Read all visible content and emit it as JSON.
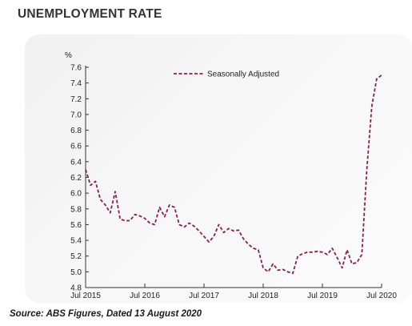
{
  "header": {
    "title": "UNEMPLOYMENT RATE"
  },
  "footer": {
    "source": "Source: ABS Figures, Dated 13 August 2020"
  },
  "chart_data": {
    "type": "line",
    "title": "UNEMPLOYMENT RATE",
    "ylabel": "%",
    "xlabel": "",
    "ylim": [
      4.8,
      7.6
    ],
    "yticks": [
      "4.8",
      "5.0",
      "5.2",
      "5.4",
      "5.6",
      "5.8",
      "6.0",
      "6.2",
      "6.4",
      "6.6",
      "6.8",
      "7.0",
      "7.2",
      "7.4",
      "7.6"
    ],
    "xticks": [
      "Jul 2015",
      "Jul 2016",
      "Jul 2017",
      "Jul 2018",
      "Jul 2019",
      "Jul 2020"
    ],
    "grid": false,
    "legend_position": "top-right",
    "series_color": "#8b1e4e",
    "series": [
      {
        "name": "Seasonally Adjusted",
        "style": "dashed",
        "x": [
          "2015-07",
          "2015-08",
          "2015-09",
          "2015-10",
          "2015-11",
          "2015-12",
          "2016-01",
          "2016-02",
          "2016-03",
          "2016-04",
          "2016-05",
          "2016-06",
          "2016-07",
          "2016-08",
          "2016-09",
          "2016-10",
          "2016-11",
          "2016-12",
          "2017-01",
          "2017-02",
          "2017-03",
          "2017-04",
          "2017-05",
          "2017-06",
          "2017-07",
          "2017-08",
          "2017-09",
          "2017-10",
          "2017-11",
          "2017-12",
          "2018-01",
          "2018-02",
          "2018-03",
          "2018-04",
          "2018-05",
          "2018-06",
          "2018-07",
          "2018-08",
          "2018-09",
          "2018-10",
          "2018-11",
          "2018-12",
          "2019-01",
          "2019-02",
          "2019-03",
          "2019-04",
          "2019-05",
          "2019-06",
          "2019-07",
          "2019-08",
          "2019-09",
          "2019-10",
          "2019-11",
          "2019-12",
          "2020-01",
          "2020-02",
          "2020-03",
          "2020-04",
          "2020-05",
          "2020-06",
          "2020-07"
        ],
        "values": [
          6.3,
          6.1,
          6.15,
          5.92,
          5.85,
          5.75,
          6.02,
          5.67,
          5.65,
          5.65,
          5.73,
          5.71,
          5.68,
          5.62,
          5.6,
          5.82,
          5.7,
          5.85,
          5.82,
          5.6,
          5.57,
          5.62,
          5.58,
          5.52,
          5.45,
          5.38,
          5.45,
          5.6,
          5.5,
          5.55,
          5.52,
          5.53,
          5.42,
          5.35,
          5.3,
          5.28,
          5.05,
          5.0,
          5.1,
          5.02,
          5.03,
          5.0,
          4.98,
          5.2,
          5.23,
          5.25,
          5.25,
          5.26,
          5.25,
          5.22,
          5.3,
          5.18,
          5.05,
          5.28,
          5.1,
          5.12,
          5.22,
          6.3,
          7.1,
          7.45,
          7.5
        ]
      }
    ]
  }
}
